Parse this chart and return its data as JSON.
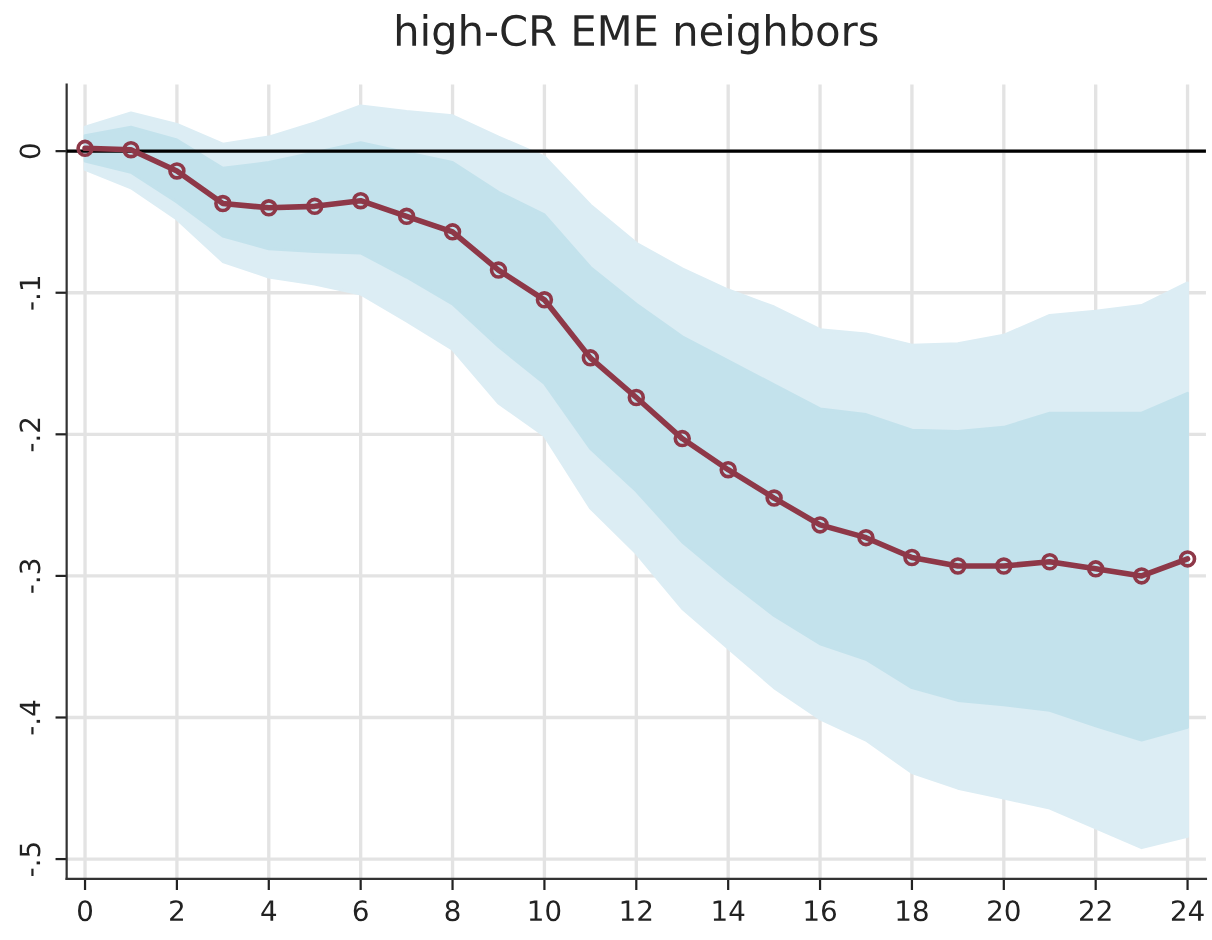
{
  "chart_data": {
    "type": "line",
    "title": "high-CR EME neighbors",
    "x": [
      0,
      1,
      2,
      3,
      4,
      5,
      6,
      7,
      8,
      9,
      10,
      11,
      12,
      13,
      14,
      15,
      16,
      17,
      18,
      19,
      20,
      21,
      22,
      23,
      24
    ],
    "series": [
      {
        "color": "#8e3848",
        "marker": "circle",
        "line_style": "solid",
        "values": [
          0.002,
          0.001,
          -0.014,
          -0.037,
          -0.04,
          -0.039,
          -0.035,
          -0.046,
          -0.057,
          -0.084,
          -0.105,
          -0.146,
          -0.174,
          -0.203,
          -0.225,
          -0.245,
          -0.264,
          -0.273,
          -0.287,
          -0.293,
          -0.293,
          -0.29,
          -0.295,
          -0.3,
          -0.288
        ]
      },
      {
        "color": "#c3e2ec",
        "values": [
          null,
          null,
          null,
          null,
          null,
          null,
          null,
          null,
          null,
          null,
          null,
          null,
          null,
          null,
          null,
          null,
          null,
          null,
          null,
          null,
          null,
          null,
          null,
          null,
          null
        ],
        "lower": [
          -0.007,
          -0.015,
          -0.036,
          -0.06,
          -0.069,
          -0.071,
          -0.072,
          -0.089,
          -0.108,
          -0.138,
          -0.164,
          -0.21,
          -0.24,
          -0.276,
          -0.303,
          -0.328,
          -0.348,
          -0.359,
          -0.379,
          -0.388,
          -0.391,
          -0.395,
          -0.406,
          -0.416,
          -0.407
        ],
        "upper": [
          0.011,
          0.017,
          0.008,
          -0.012,
          -0.008,
          -0.001,
          0.006,
          -0.001,
          -0.008,
          -0.029,
          -0.045,
          -0.082,
          -0.108,
          -0.131,
          -0.148,
          -0.165,
          -0.182,
          -0.186,
          -0.197,
          -0.198,
          -0.195,
          -0.185,
          -0.185,
          -0.185,
          -0.171
        ]
      },
      {
        "color": "#dcedf4",
        "values": [
          null,
          null,
          null,
          null,
          null,
          null,
          null,
          null,
          null,
          null,
          null,
          null,
          null,
          null,
          null,
          null,
          null,
          null,
          null,
          null,
          null,
          null,
          null,
          null,
          null
        ],
        "lower": [
          -0.013,
          -0.026,
          -0.048,
          -0.078,
          -0.089,
          -0.094,
          -0.101,
          -0.12,
          -0.14,
          -0.178,
          -0.201,
          -0.252,
          -0.284,
          -0.323,
          -0.351,
          -0.379,
          -0.401,
          -0.416,
          -0.439,
          -0.45,
          -0.457,
          -0.464,
          -0.478,
          -0.492,
          -0.484
        ],
        "upper": [
          0.017,
          0.027,
          0.019,
          0.005,
          0.01,
          0.02,
          0.032,
          0.028,
          0.025,
          0.01,
          -0.004,
          -0.038,
          -0.065,
          -0.083,
          -0.098,
          -0.11,
          -0.126,
          -0.129,
          -0.137,
          -0.136,
          -0.13,
          -0.116,
          -0.113,
          -0.109,
          -0.093
        ]
      }
    ],
    "xlim": [
      -0.4,
      24.4
    ],
    "ylim": [
      -0.514,
      0.047
    ],
    "xticks": [
      0,
      2,
      4,
      6,
      8,
      10,
      12,
      14,
      16,
      18,
      20,
      22,
      24
    ],
    "yticks": [
      {
        "value": 0,
        "label": "0"
      },
      {
        "value": -0.1,
        "label": "-.1"
      },
      {
        "value": -0.2,
        "label": "-.2"
      },
      {
        "value": -0.3,
        "label": "-.3"
      },
      {
        "value": -0.4,
        "label": "-.4"
      },
      {
        "value": -0.5,
        "label": "-.5"
      }
    ],
    "ref_lines": [
      {
        "axis": "y",
        "value": 0,
        "color": "#000000"
      }
    ],
    "grid": true,
    "legend": false
  }
}
